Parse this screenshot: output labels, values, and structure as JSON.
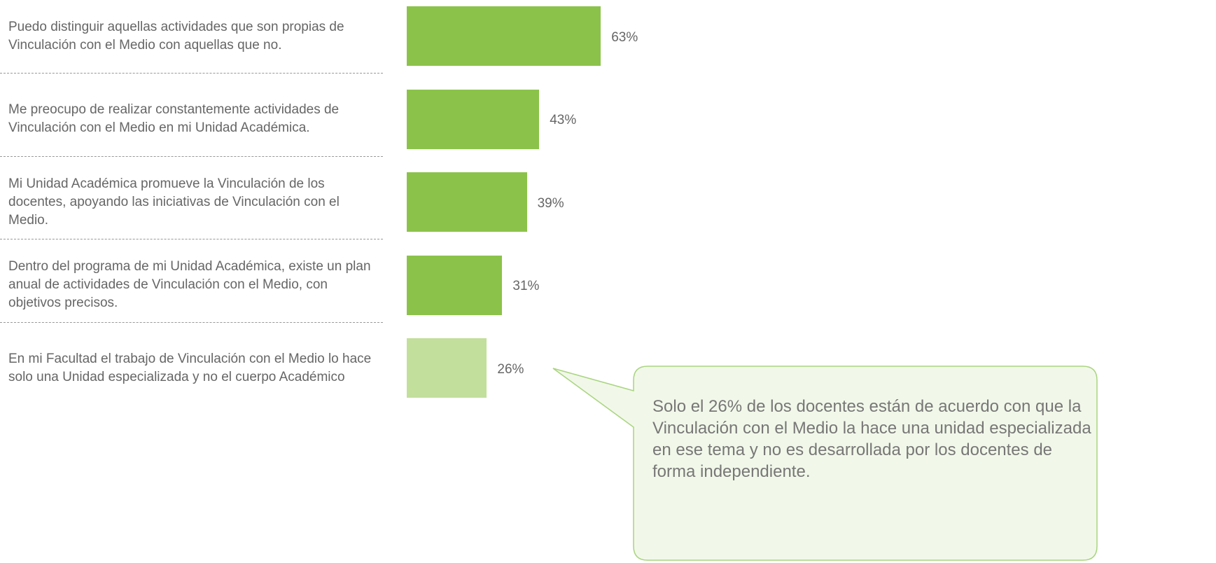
{
  "chart_data": {
    "type": "bar",
    "orientation": "horizontal",
    "categories": [
      "Puedo distinguir aquellas actividades que son propias de Vinculación con el Medio con aquellas que no.",
      "Me preocupo de realizar constantemente actividades de Vinculación con el Medio en mi Unidad Académica.",
      "Mi Unidad Académica promueve la Vinculación de los docentes, apoyando las iniciativas de Vinculación con el Medio.",
      "Dentro del programa de mi Unidad Académica, existe un plan anual de actividades de Vinculación con el Medio, con objetivos precisos.",
      "En mi Facultad el trabajo de Vinculación con el Medio lo hace solo una Unidad especializada y no el cuerpo Académico"
    ],
    "values": [
      63,
      43,
      39,
      31,
      26
    ],
    "value_labels": [
      "63%",
      "43%",
      "39%",
      "31%",
      "26%"
    ],
    "colors": [
      "#8bc34a",
      "#8bc34a",
      "#8bc34a",
      "#8bc34a",
      "#c2df9c"
    ],
    "annotation": "Solo el 26% de los docentes están de acuerdo con que la Vinculación con el Medio la hace una unidad especializada en ese tema y no es desarrollada por los docentes de forma independiente."
  }
}
